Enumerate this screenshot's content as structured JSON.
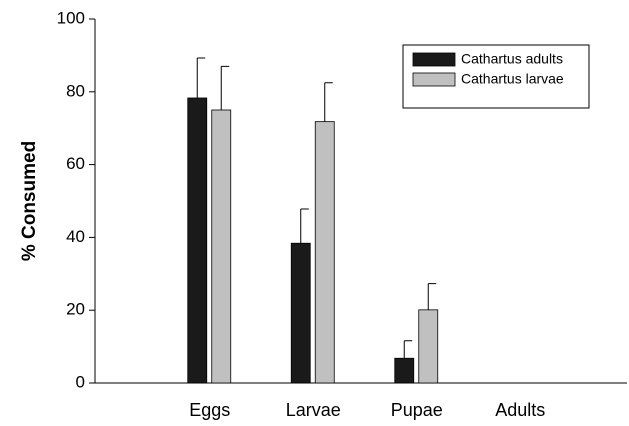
{
  "chart_data": {
    "type": "bar",
    "y_label": "% Consumed",
    "categories": [
      "Eggs",
      "Larvae",
      "Pupae",
      "Adults"
    ],
    "series": [
      {
        "name": "Cathartus adults",
        "color": "#1a1a1a",
        "values": [
          78.3,
          38.4,
          6.8,
          0
        ],
        "errors": [
          11.0,
          9.4,
          4.8,
          0
        ]
      },
      {
        "name": "Cathartus larvae",
        "color": "#c0c0c0",
        "values": [
          75.0,
          71.8,
          20.1,
          0
        ],
        "errors": [
          12.0,
          10.7,
          7.2,
          0
        ]
      }
    ],
    "ylim": [
      0,
      100
    ],
    "yticks": [
      0,
      20,
      40,
      60,
      80,
      100
    ],
    "legend": "upper right"
  }
}
